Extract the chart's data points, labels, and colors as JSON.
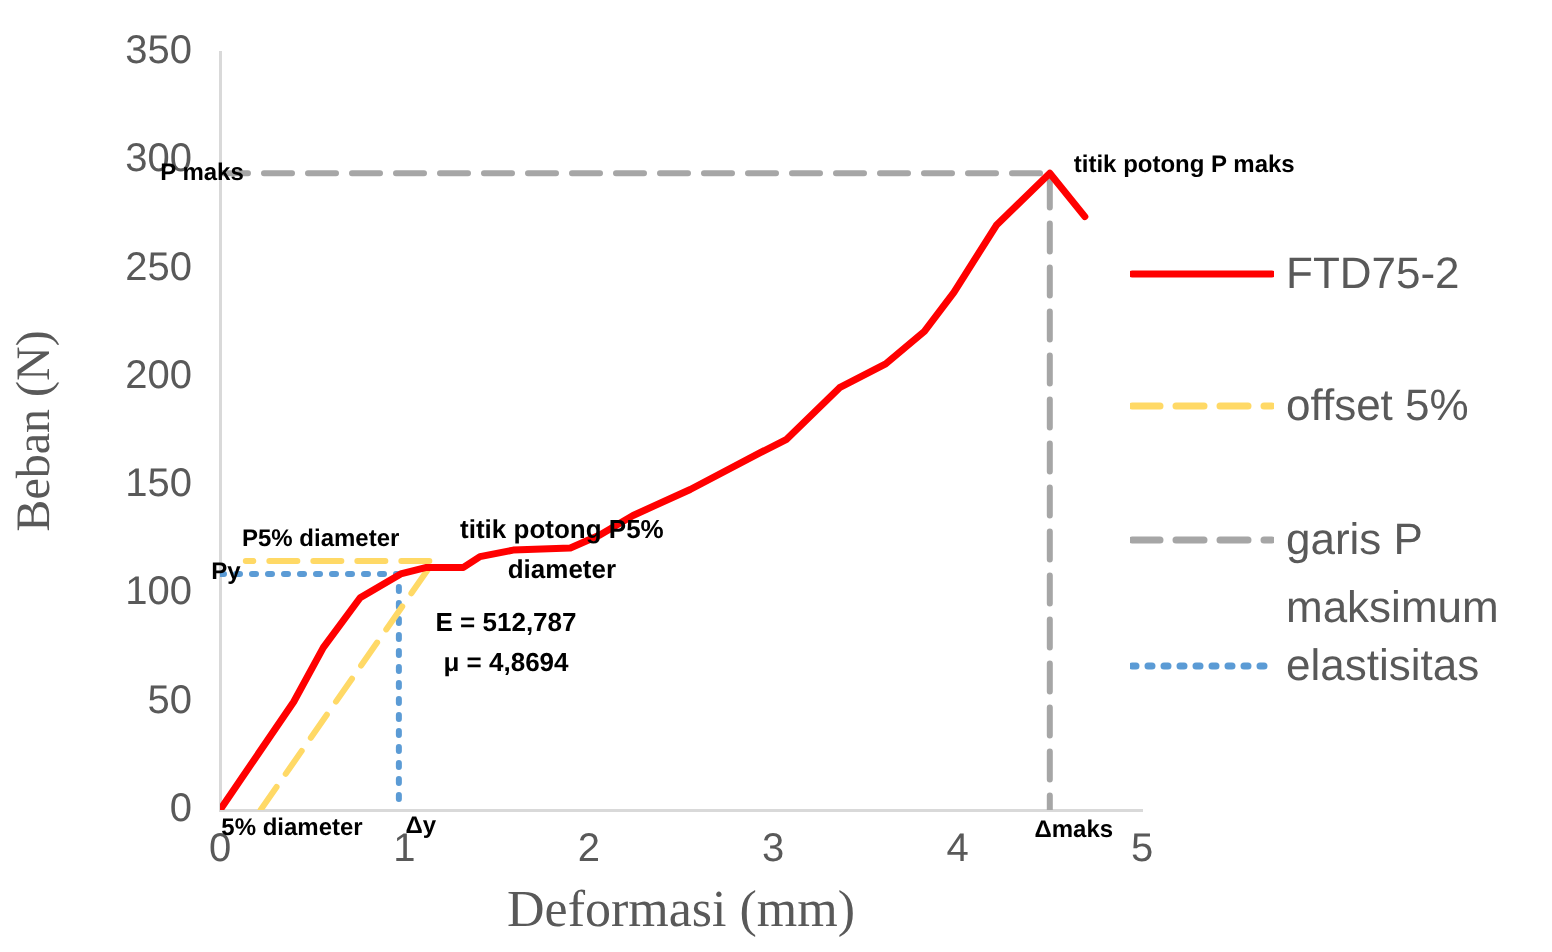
{
  "chart_data": {
    "type": "line",
    "xlabel": "Deformasi (mm)",
    "ylabel": "Beban (N)",
    "xlim": [
      0,
      5
    ],
    "xticks": [
      0,
      1,
      2,
      3,
      4,
      5
    ],
    "ylim": [
      0,
      350
    ],
    "yticks": [
      0,
      50,
      100,
      150,
      200,
      250,
      300,
      350
    ],
    "grid": false,
    "legend": "right",
    "marker": "none",
    "series": [
      {
        "name": "FTD75-2",
        "color": "#ff0000",
        "line_style": "solid",
        "x": [
          0,
          0.4,
          0.56,
          0.76,
          0.98,
          1.12,
          1.32,
          1.41,
          1.59,
          1.9,
          2.06,
          2.24,
          2.55,
          2.93,
          3.07,
          3.36,
          3.61,
          3.82,
          3.98,
          4.21,
          4.5,
          4.69
        ],
        "values": [
          0,
          50,
          75,
          98,
          109,
          112,
          112,
          117,
          120,
          121,
          127,
          136,
          148,
          165,
          171,
          195,
          206,
          221,
          239,
          270,
          294,
          274
        ]
      },
      {
        "name": "offset 5%",
        "color": "#ffd966",
        "line_style": "dashed",
        "x": [
          0.22,
          1.16,
          0.14
        ],
        "values": [
          0,
          115,
          115
        ]
      },
      {
        "name": "garis P maksimum",
        "color": "#a6a6a6",
        "line_style": "dashed",
        "x": [
          0,
          4.5,
          4.5
        ],
        "values": [
          294,
          294,
          0
        ]
      },
      {
        "name": "elastisitas",
        "color": "#5b9bd5",
        "line_style": "dotted",
        "x": [
          0,
          0.97,
          0.97
        ],
        "values": [
          109,
          109,
          0
        ]
      }
    ],
    "annotations": [
      {
        "text": "P maks",
        "x": 0,
        "y": 294
      },
      {
        "text": "titik potong P maks",
        "x": 4.5,
        "y": 294
      },
      {
        "text": "P5% diameter",
        "x": 0.6,
        "y": 115
      },
      {
        "text": "Py",
        "x": 0,
        "y": 109
      },
      {
        "text": "titik potong P5% diameter",
        "x": 1.16,
        "y": 115
      },
      "E = 512,787",
      "μ = 4,8694",
      {
        "text": "5% diameter",
        "x": 0,
        "y": 0
      },
      {
        "text": "Δy",
        "x": 0.97,
        "y": 0
      },
      {
        "text": "Δmaks",
        "x": 4.5,
        "y": 0
      }
    ]
  }
}
